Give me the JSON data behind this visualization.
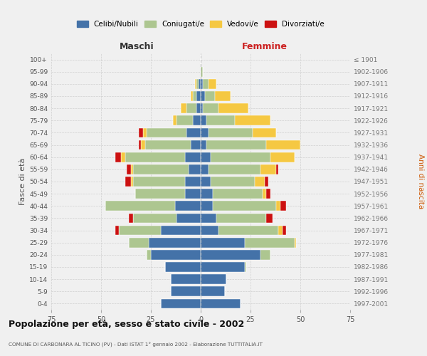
{
  "age_groups": [
    "0-4",
    "5-9",
    "10-14",
    "15-19",
    "20-24",
    "25-29",
    "30-34",
    "35-39",
    "40-44",
    "45-49",
    "50-54",
    "55-59",
    "60-64",
    "65-69",
    "70-74",
    "75-79",
    "80-84",
    "85-89",
    "90-94",
    "95-99",
    "100+"
  ],
  "birth_years": [
    "1997-2001",
    "1992-1996",
    "1987-1991",
    "1982-1986",
    "1977-1981",
    "1972-1976",
    "1967-1971",
    "1962-1966",
    "1957-1961",
    "1952-1956",
    "1947-1951",
    "1942-1946",
    "1937-1941",
    "1932-1936",
    "1927-1931",
    "1922-1926",
    "1917-1921",
    "1912-1916",
    "1907-1911",
    "1902-1906",
    "≤ 1901"
  ],
  "colors": {
    "celibe": "#4472a8",
    "coniugato": "#adc690",
    "vedovo": "#f5c842",
    "divorziato": "#cc1111"
  },
  "maschi": {
    "celibe": [
      20,
      15,
      15,
      18,
      25,
      26,
      20,
      12,
      13,
      8,
      8,
      6,
      8,
      5,
      7,
      4,
      2,
      2,
      1,
      0,
      0
    ],
    "coniugato": [
      0,
      0,
      0,
      0,
      2,
      10,
      21,
      22,
      35,
      25,
      26,
      28,
      30,
      23,
      20,
      8,
      5,
      2,
      1,
      0,
      0
    ],
    "vedovo": [
      0,
      0,
      0,
      0,
      0,
      0,
      0,
      0,
      0,
      0,
      1,
      1,
      2,
      2,
      2,
      2,
      3,
      1,
      1,
      0,
      0
    ],
    "divorziato": [
      0,
      0,
      0,
      0,
      0,
      0,
      2,
      2,
      0,
      0,
      3,
      2,
      3,
      1,
      2,
      0,
      0,
      0,
      0,
      0,
      0
    ]
  },
  "femmine": {
    "nubile": [
      20,
      12,
      13,
      22,
      30,
      22,
      9,
      8,
      6,
      6,
      5,
      4,
      5,
      3,
      4,
      3,
      1,
      2,
      1,
      0,
      0
    ],
    "coniugata": [
      0,
      0,
      0,
      1,
      5,
      25,
      30,
      25,
      32,
      25,
      22,
      26,
      30,
      30,
      22,
      14,
      8,
      5,
      3,
      1,
      0
    ],
    "vedova": [
      0,
      0,
      0,
      0,
      0,
      1,
      2,
      0,
      2,
      2,
      5,
      8,
      12,
      17,
      12,
      18,
      15,
      8,
      4,
      0,
      0
    ],
    "divorziata": [
      0,
      0,
      0,
      0,
      0,
      0,
      2,
      3,
      3,
      2,
      2,
      1,
      0,
      0,
      0,
      0,
      0,
      0,
      0,
      0,
      0
    ]
  },
  "xlim": 75,
  "title": "Popolazione per età, sesso e stato civile - 2002",
  "subtitle": "COMUNE DI CARBONARA AL TICINO (PV) - Dati ISTAT 1° gennaio 2002 - Elaborazione TUTTITALIA.IT",
  "xlabel_left": "Maschi",
  "xlabel_right": "Femmine",
  "ylabel_left": "Fasce di età",
  "ylabel_right": "Anni di nascita",
  "legend_labels": [
    "Celibi/Nubili",
    "Coniugati/e",
    "Vedovi/e",
    "Divorziati/e"
  ],
  "bg_color": "#f0f0f0",
  "grid_color": "#cccccc"
}
